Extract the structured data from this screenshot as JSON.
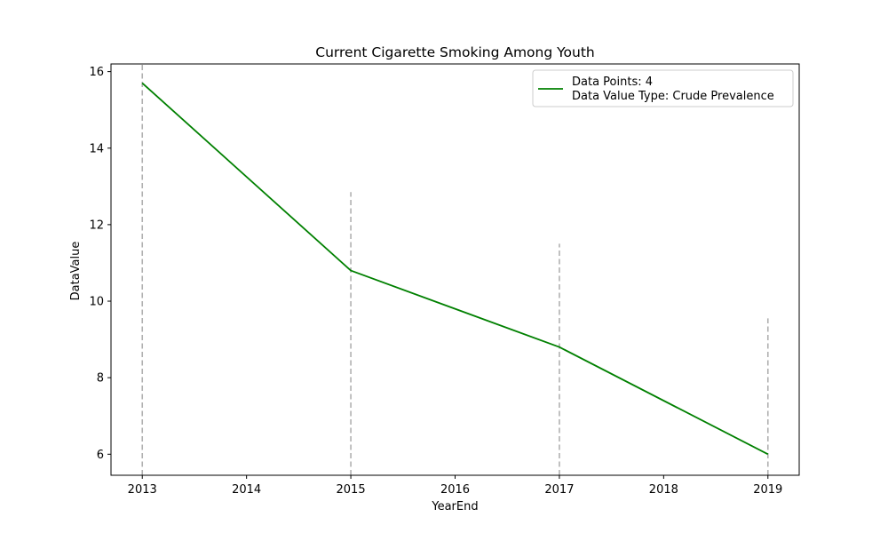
{
  "chart_data": {
    "type": "line",
    "title": "Current Cigarette Smoking Among Youth",
    "xlabel": "YearEnd",
    "ylabel": "DataValue",
    "x": [
      2013,
      2015,
      2017,
      2019
    ],
    "series": [
      {
        "values": [
          15.7,
          10.8,
          8.8,
          6.0
        ],
        "color": "#008000"
      }
    ],
    "error_bars": {
      "color": "#b0b0b0",
      "style": "dashed",
      "upper": [
        16.2,
        12.85,
        11.5,
        9.55
      ],
      "lower": [
        5.45,
        5.45,
        5.45,
        5.45
      ]
    },
    "xlim": [
      2012.7,
      2019.3
    ],
    "ylim": [
      5.45,
      16.2
    ],
    "xticks": [
      "2013",
      "2014",
      "2015",
      "2016",
      "2017",
      "2018",
      "2019"
    ],
    "yticks": [
      "6",
      "8",
      "10",
      "12",
      "14",
      "16"
    ],
    "legend": {
      "position": "top-right",
      "lines": [
        "Data Points: 4",
        "Data Value Type: Crude Prevalence"
      ]
    },
    "grid": false
  }
}
